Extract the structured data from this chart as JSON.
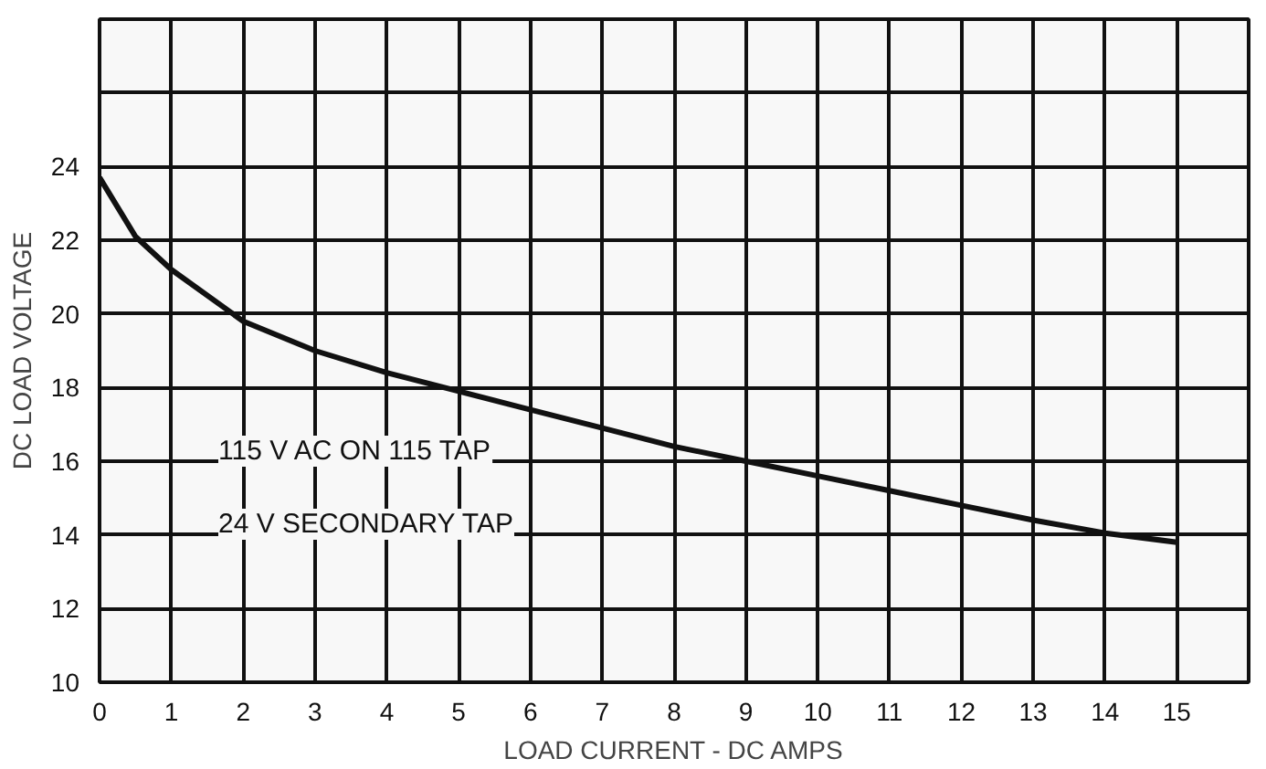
{
  "chart_data": {
    "type": "line",
    "xlabel": "LOAD CURRENT - DC AMPS",
    "ylabel": "DC LOAD VOLTAGE",
    "x": [
      0,
      0.5,
      1,
      2,
      3,
      4,
      5,
      6,
      7,
      8,
      9,
      10,
      11,
      12,
      13,
      14,
      15
    ],
    "series": [
      {
        "color": "#111111",
        "values": [
          23.7,
          22.1,
          21.2,
          19.8,
          19.0,
          18.4,
          17.9,
          17.4,
          16.9,
          16.4,
          16.0,
          15.6,
          15.2,
          14.8,
          14.4,
          14.05,
          13.8
        ]
      }
    ],
    "xlim": [
      0,
      16
    ],
    "ylim": [
      10,
      28
    ],
    "xticks": [
      0,
      1,
      2,
      3,
      4,
      5,
      6,
      7,
      8,
      9,
      10,
      11,
      12,
      13,
      14,
      15
    ],
    "yticks": [
      10,
      12,
      14,
      16,
      18,
      20,
      22,
      24,
      {
        "value": 26,
        "label": null
      }
    ],
    "grid": true,
    "marker": "none",
    "line_style": "solid",
    "annotations": [
      "115 V AC ON 115 TAP",
      "24 V SECONDARY TAP"
    ]
  }
}
